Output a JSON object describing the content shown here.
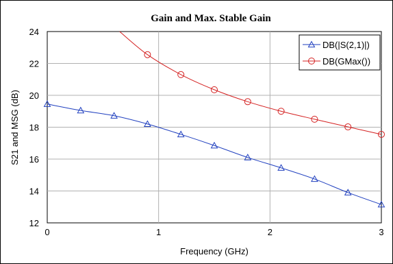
{
  "chart_data": {
    "type": "line",
    "title": "Gain and Max. Stable Gain",
    "xlabel": "Frequency (GHz)",
    "ylabel": "S21 and MSG (dB)",
    "xlim": [
      0,
      3
    ],
    "ylim": [
      12,
      24
    ],
    "xticks": [
      0,
      1,
      2,
      3
    ],
    "yticks": [
      12,
      14,
      16,
      18,
      20,
      22,
      24
    ],
    "grid": true,
    "legend_position": "top-right",
    "series": [
      {
        "name": "DB(|S(2,1)|)",
        "color": "#1f3fbf",
        "marker": "triangle",
        "x": [
          0,
          0.3,
          0.6,
          0.9,
          1.2,
          1.5,
          1.8,
          2.1,
          2.4,
          2.7,
          3.0
        ],
        "y": [
          19.45,
          19.05,
          18.72,
          18.2,
          17.55,
          16.85,
          16.1,
          15.45,
          14.75,
          13.9,
          13.15
        ]
      },
      {
        "name": "DB(GMax())",
        "color": "#d42020",
        "marker": "circle",
        "x": [
          0.65,
          0.9,
          1.2,
          1.5,
          1.8,
          2.1,
          2.4,
          2.7,
          3.0
        ],
        "y": [
          24.0,
          22.55,
          21.3,
          20.35,
          19.6,
          19.0,
          18.5,
          18.02,
          17.55
        ]
      }
    ]
  }
}
